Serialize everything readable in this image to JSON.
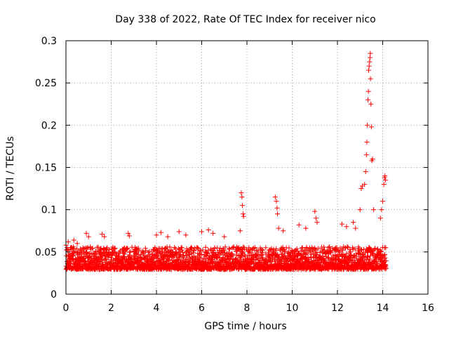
{
  "chart_data": {
    "type": "scatter",
    "title": "Day 338 of 2022, Rate Of TEC Index for receiver nico",
    "xlabel": "GPS time / hours",
    "ylabel": "ROTI / TECUs",
    "xlim": [
      0,
      16
    ],
    "ylim": [
      0,
      0.3
    ],
    "x_ticks": [
      0,
      2,
      4,
      6,
      8,
      10,
      12,
      14,
      16
    ],
    "x_tick_labels": [
      "0",
      "2",
      "4",
      "6",
      "8",
      "10",
      "12",
      "14",
      "16"
    ],
    "y_ticks": [
      0,
      0.05,
      0.1,
      0.15,
      0.2,
      0.25,
      0.3
    ],
    "y_tick_labels": [
      "0",
      "0.05",
      "0.1",
      "0.15",
      "0.2",
      "0.25",
      "0.3"
    ],
    "grid": true,
    "marker": "+",
    "marker_color": "#ff0000",
    "data_range_hours": [
      0,
      14.15
    ],
    "baseline_band": [
      0.01,
      0.065
    ],
    "series": [
      {
        "name": "ROTI",
        "points": [
          [
            0.0,
            0.058
          ],
          [
            0.1,
            0.062
          ],
          [
            0.2,
            0.055
          ],
          [
            0.35,
            0.064
          ],
          [
            0.5,
            0.06
          ],
          [
            0.9,
            0.072
          ],
          [
            1.0,
            0.068
          ],
          [
            1.6,
            0.071
          ],
          [
            1.7,
            0.068
          ],
          [
            2.75,
            0.072
          ],
          [
            2.8,
            0.069
          ],
          [
            4.0,
            0.07
          ],
          [
            4.2,
            0.073
          ],
          [
            4.5,
            0.068
          ],
          [
            5.0,
            0.074
          ],
          [
            5.3,
            0.07
          ],
          [
            6.0,
            0.074
          ],
          [
            6.3,
            0.076
          ],
          [
            6.5,
            0.072
          ],
          [
            7.0,
            0.068
          ],
          [
            7.75,
            0.12
          ],
          [
            7.78,
            0.115
          ],
          [
            7.8,
            0.105
          ],
          [
            7.83,
            0.095
          ],
          [
            7.85,
            0.092
          ],
          [
            7.7,
            0.075
          ],
          [
            9.25,
            0.115
          ],
          [
            9.3,
            0.11
          ],
          [
            9.33,
            0.102
          ],
          [
            9.35,
            0.095
          ],
          [
            9.4,
            0.078
          ],
          [
            9.6,
            0.075
          ],
          [
            10.3,
            0.082
          ],
          [
            10.6,
            0.078
          ],
          [
            11.0,
            0.098
          ],
          [
            11.05,
            0.09
          ],
          [
            11.1,
            0.085
          ],
          [
            12.2,
            0.083
          ],
          [
            12.4,
            0.08
          ],
          [
            12.7,
            0.085
          ],
          [
            12.8,
            0.078
          ],
          [
            13.0,
            0.1
          ],
          [
            13.05,
            0.125
          ],
          [
            13.1,
            0.128
          ],
          [
            13.2,
            0.13
          ],
          [
            13.25,
            0.145
          ],
          [
            13.28,
            0.165
          ],
          [
            13.3,
            0.18
          ],
          [
            13.32,
            0.2
          ],
          [
            13.35,
            0.23
          ],
          [
            13.37,
            0.24
          ],
          [
            13.38,
            0.265
          ],
          [
            13.4,
            0.27
          ],
          [
            13.42,
            0.275
          ],
          [
            13.44,
            0.28
          ],
          [
            13.45,
            0.285
          ],
          [
            13.46,
            0.255
          ],
          [
            13.48,
            0.225
          ],
          [
            13.5,
            0.198
          ],
          [
            13.52,
            0.158
          ],
          [
            13.55,
            0.16
          ],
          [
            13.6,
            0.1
          ],
          [
            13.9,
            0.09
          ],
          [
            13.95,
            0.1
          ],
          [
            14.0,
            0.11
          ],
          [
            14.05,
            0.13
          ],
          [
            14.08,
            0.138
          ],
          [
            14.1,
            0.14
          ],
          [
            14.12,
            0.135
          ]
        ]
      }
    ]
  }
}
